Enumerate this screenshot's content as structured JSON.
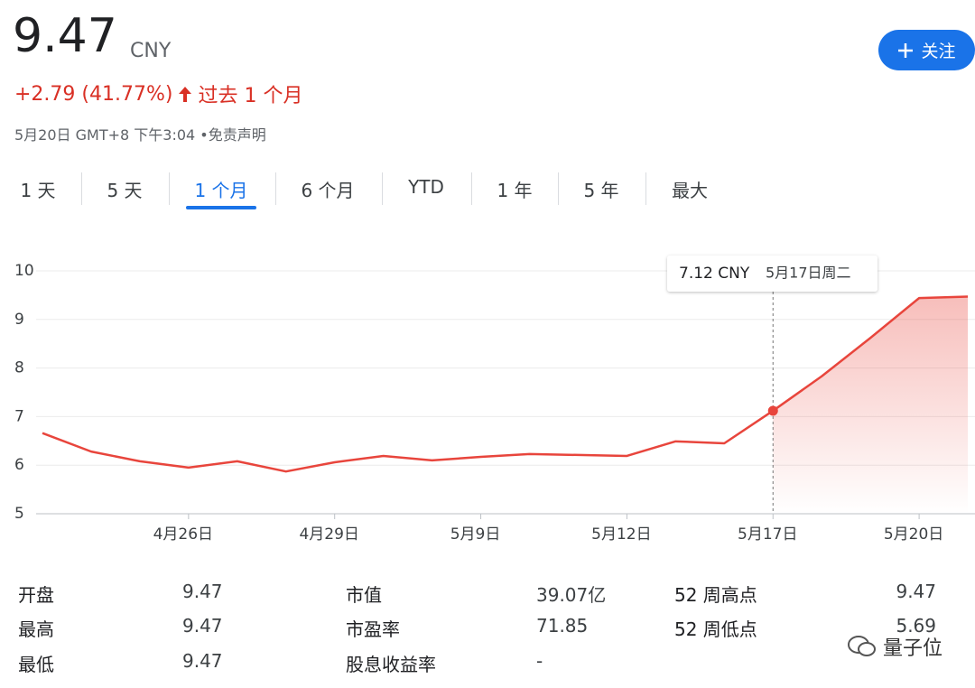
{
  "header": {
    "price": "9.47",
    "currency": "CNY",
    "change": "+2.79 (41.77%)",
    "period": "过去 1 个月",
    "timestamp": "5月20日 GMT+8 下午3:04",
    "disclaimer": "免责声明",
    "follow_button": "关注"
  },
  "tabs": {
    "items": [
      "1 天",
      "5 天",
      "1 个月",
      "6 个月",
      "YTD",
      "1 年",
      "5 年",
      "最大"
    ],
    "active": 2
  },
  "chart_data": {
    "type": "line",
    "categories": [
      null,
      null,
      null,
      "4月26日",
      null,
      null,
      "4月29日",
      null,
      null,
      "5月9日",
      null,
      null,
      "5月12日",
      null,
      null,
      "5月17日",
      null,
      null,
      "5月20日",
      null
    ],
    "series": [
      {
        "name": "CNY",
        "color": "#e8453c",
        "values": [
          6.66,
          6.28,
          6.08,
          5.95,
          6.08,
          5.87,
          6.06,
          6.19,
          6.1,
          6.17,
          6.23,
          6.21,
          6.19,
          6.49,
          6.45,
          7.12,
          7.83,
          8.62,
          9.44,
          9.47
        ]
      }
    ],
    "ylim": [
      5,
      10
    ],
    "yticks": [
      5,
      6,
      7,
      8,
      9,
      10
    ],
    "grid": true,
    "tooltip": {
      "index": 15,
      "value_text": "7.12 CNY",
      "date": "5月17日周二"
    }
  },
  "stats": {
    "columns": [
      [
        [
          "开盘",
          "9.47"
        ],
        [
          "最高",
          "9.47"
        ],
        [
          "最低",
          "9.47"
        ]
      ],
      [
        [
          "市值",
          "39.07亿"
        ],
        [
          "市盈率",
          "71.85"
        ],
        [
          "股息收益率",
          "-"
        ]
      ],
      [
        [
          "52 周高点",
          "9.47"
        ],
        [
          "52 周低点",
          "5.69"
        ]
      ]
    ]
  },
  "watermark": "量子位"
}
